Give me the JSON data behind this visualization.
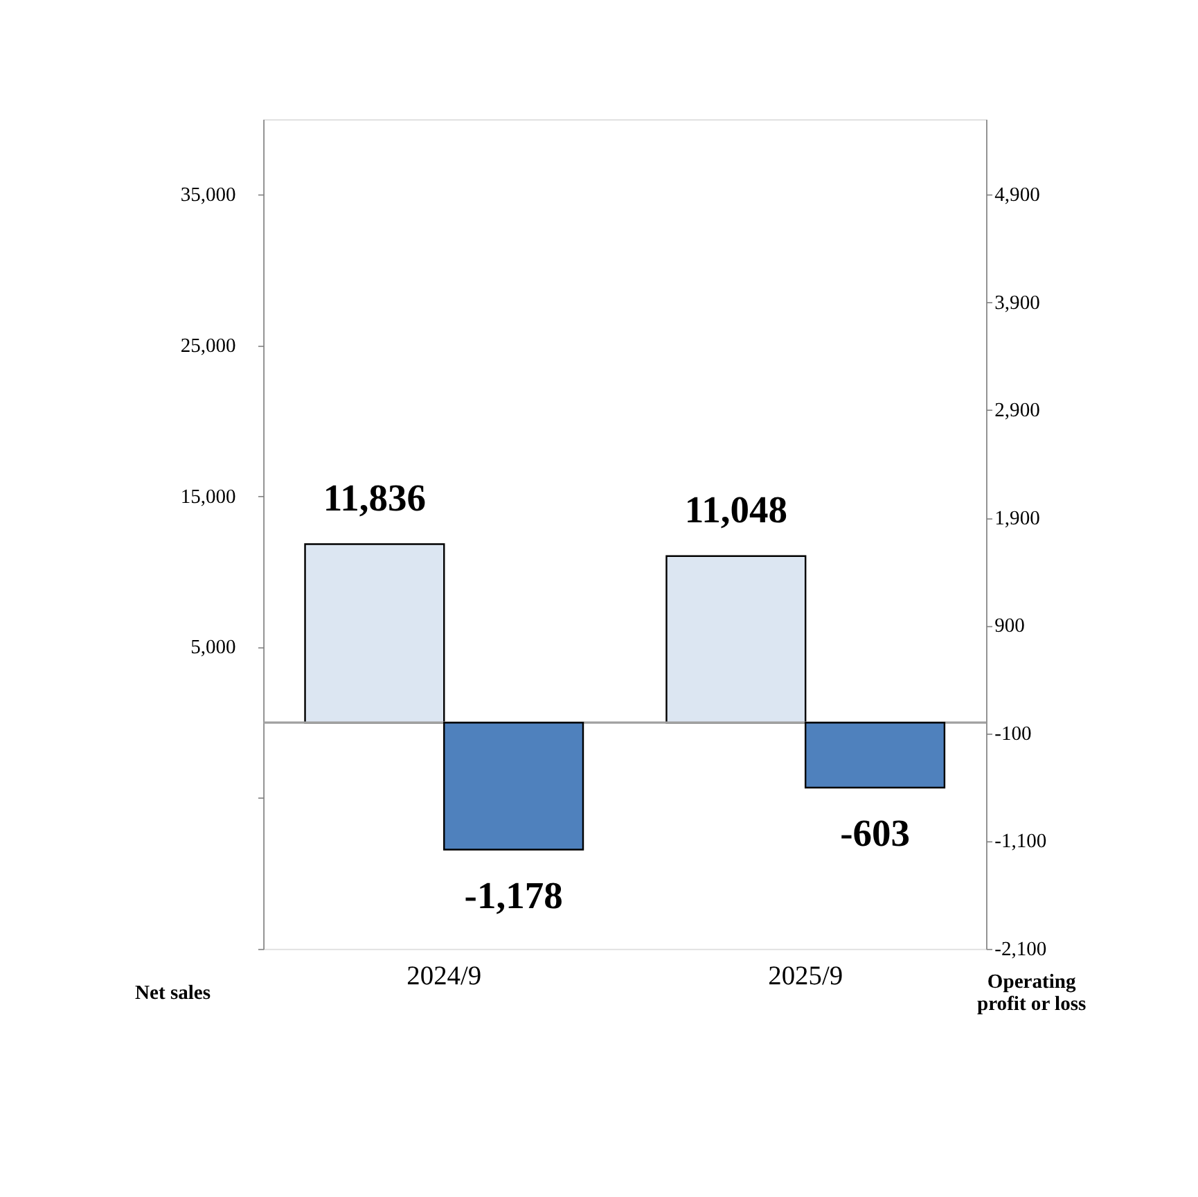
{
  "chart_data": {
    "type": "bar",
    "categories": [
      "2024/9",
      "2025/9"
    ],
    "series": [
      {
        "color": "#dce6f2",
        "values": [
          11836,
          11048
        ],
        "value_labels": [
          "11,836",
          "11,048"
        ]
      },
      {
        "color": "#4f81bd",
        "values": [
          -1178,
          -603
        ],
        "value_labels": [
          "-1,178",
          "-603"
        ],
        "axis": "y2"
      }
    ],
    "ylabel": "Net sales",
    "y2label": "Operating profit or loss",
    "ylim": [
      -15000,
      40000
    ],
    "yticks": [
      {
        "value": -15000,
        "label": null
      },
      {
        "value": -5000,
        "label": null
      },
      {
        "value": 5000,
        "label": "5,000"
      },
      {
        "value": 15000,
        "label": "15,000"
      },
      {
        "value": 25000,
        "label": "25,000"
      },
      {
        "value": 35000,
        "label": "35,000"
      }
    ],
    "y2lim": [
      -2100,
      5600
    ],
    "y2ticks": [
      {
        "value": -2100,
        "label": "-2,100"
      },
      {
        "value": -1100,
        "label": "-1,100"
      },
      {
        "value": -100,
        "label": "-100"
      },
      {
        "value": 900,
        "label": "900"
      },
      {
        "value": 1900,
        "label": "1,900"
      },
      {
        "value": 2900,
        "label": "2,900"
      },
      {
        "value": 3900,
        "label": "3,900"
      },
      {
        "value": 4900,
        "label": "4,900"
      }
    ],
    "ref_lines": [
      {
        "axis": "y",
        "value": 0,
        "color": "#a0a0a0"
      }
    ],
    "grid": false
  }
}
